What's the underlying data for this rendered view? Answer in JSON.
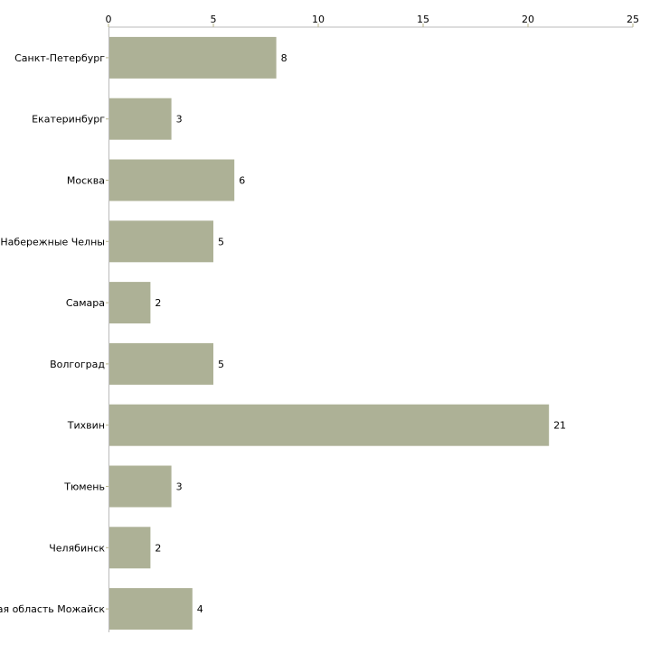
{
  "chart_data": {
    "type": "bar",
    "orientation": "horizontal",
    "title": "",
    "xlabel": "",
    "ylabel": "",
    "categories": [
      "Санкт-Петербург",
      "Екатеринбург",
      "Москва",
      "Набережные Челны",
      "Самара",
      "Волгоград",
      "Тихвин",
      "Тюмень",
      "Челябинск",
      "Московская область Можайск"
    ],
    "values": [
      8,
      3,
      6,
      5,
      2,
      5,
      21,
      3,
      2,
      4
    ],
    "xlim": [
      0,
      25
    ],
    "xticks": [
      0,
      5,
      10,
      15,
      20,
      25
    ],
    "tick_position": "top",
    "grid": false,
    "legend": "none",
    "colors": {
      "bar": "#adb196",
      "axis": "#bbbbbb",
      "tick": "#b7b48a"
    }
  }
}
